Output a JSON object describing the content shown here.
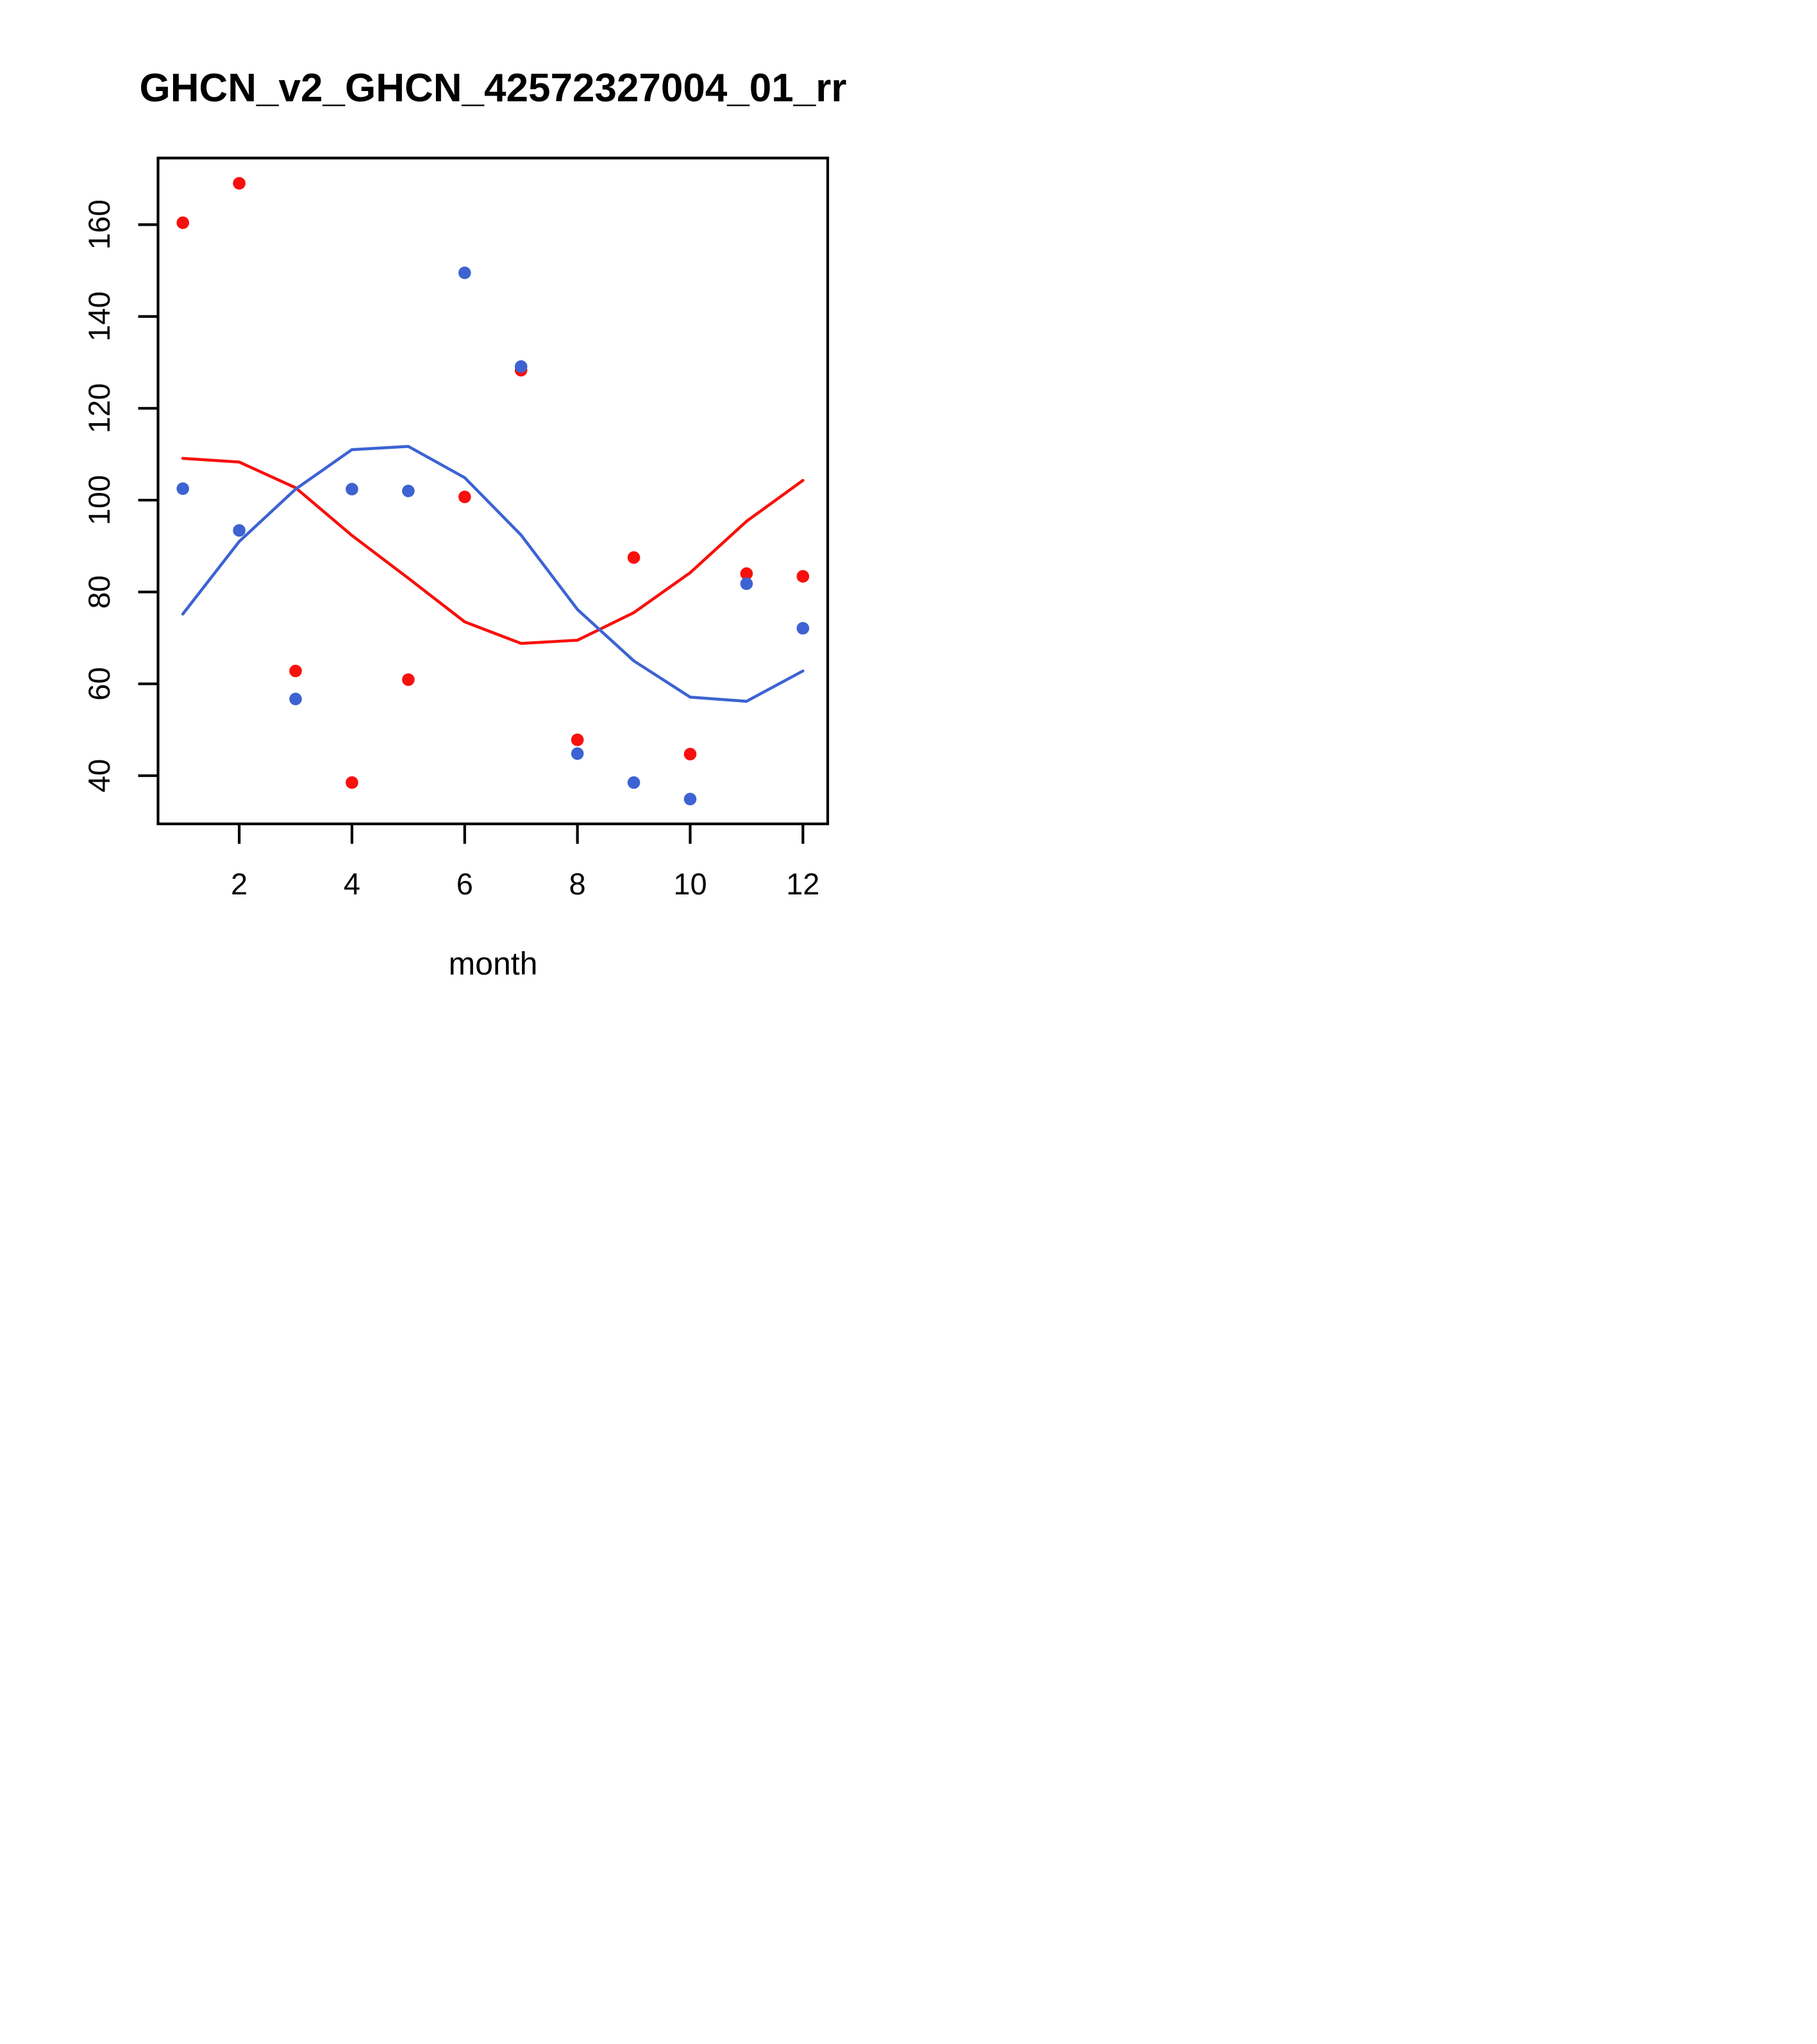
{
  "page": {
    "background": "#ffffff"
  },
  "chart_data": {
    "type": "scatter",
    "title": "GHCN_v2_GHCN_42572327004_01_rr",
    "xlabel": "month",
    "ylabel": "",
    "xlim": [
      0.56,
      12.44
    ],
    "ylim": [
      29.5,
      174.5
    ],
    "x_ticks": [
      "2",
      "4",
      "6",
      "8",
      "10",
      "12"
    ],
    "x_tick_values": [
      2,
      4,
      6,
      8,
      10,
      12
    ],
    "y_ticks": [
      "40",
      "60",
      "80",
      "100",
      "120",
      "140",
      "160"
    ],
    "y_tick_values": [
      40,
      60,
      80,
      100,
      120,
      140,
      160
    ],
    "grid": false,
    "legend_position": "none",
    "frame": true,
    "axis_color": "#000000",
    "x": [
      1,
      2,
      3,
      4,
      5,
      6,
      7,
      8,
      9,
      10,
      11,
      12
    ],
    "series": [
      {
        "name": "red-points",
        "kind": "points",
        "color": "#f8100c",
        "values": [
          160.4,
          169.0,
          62.8,
          38.5,
          60.9,
          100.7,
          128.3,
          47.8,
          87.5,
          44.7,
          84.0,
          83.4
        ]
      },
      {
        "name": "blue-points",
        "kind": "points",
        "color": "#3d63d2",
        "values": [
          102.5,
          93.4,
          56.7,
          102.4,
          102.0,
          149.5,
          129.1,
          44.8,
          38.5,
          34.9,
          81.8,
          72.1
        ]
      },
      {
        "name": "red-smooth-line",
        "kind": "line",
        "color": "#f8100c",
        "values": [
          109.1,
          108.3,
          102.7,
          92.3,
          83.0,
          73.5,
          68.8,
          69.5,
          75.5,
          84.2,
          95.4,
          104.3
        ]
      },
      {
        "name": "blue-smooth-line",
        "kind": "line",
        "color": "#3d63d2",
        "values": [
          75.2,
          91.0,
          102.4,
          111.0,
          111.7,
          104.9,
          92.4,
          76.2,
          65.0,
          57.1,
          56.2,
          62.8
        ]
      }
    ]
  }
}
